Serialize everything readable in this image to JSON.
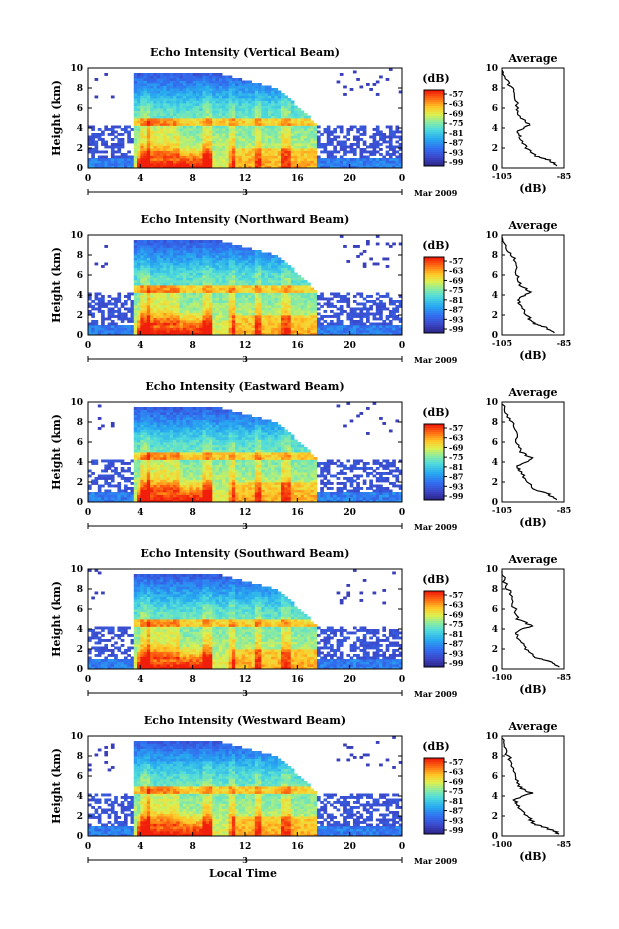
{
  "chart_data": [
    {
      "type": "heatmap",
      "title": "Echo Intensity (Vertical Beam)",
      "ylabel": "Height (km)",
      "yticks": [
        "0",
        "2",
        "4",
        "6",
        "8",
        "10"
      ],
      "ylim": [
        0,
        10
      ],
      "xticks": [
        "0",
        "4",
        "8",
        "12",
        "16",
        "20",
        "0"
      ],
      "day_label": "3",
      "date_label": "Mar 2009",
      "colorbar": {
        "unit": "(dB)",
        "labels": [
          "-57",
          "-63",
          "-69",
          "-75",
          "-81",
          "-87",
          "-93",
          "-99"
        ],
        "range": [
          -99,
          -57
        ]
      },
      "average": {
        "title": "Average",
        "xlabel": "(dB)",
        "xticks": [
          "-105",
          "-85"
        ],
        "xlim": [
          -105,
          -85
        ],
        "ylim": [
          0,
          10
        ],
        "profile": [
          [
            -87,
            0.2
          ],
          [
            -90,
            0.8
          ],
          [
            -94,
            1.2
          ],
          [
            -97,
            2.0
          ],
          [
            -99,
            3.0
          ],
          [
            -100,
            3.6
          ],
          [
            -96,
            4.3
          ],
          [
            -99,
            5.0
          ],
          [
            -100,
            6.0
          ],
          [
            -101,
            7.5
          ],
          [
            -103,
            8.5
          ],
          [
            -105,
            9.8
          ]
        ]
      }
    },
    {
      "type": "heatmap",
      "title": "Echo Intensity (Northward Beam)",
      "ylabel": "Height (km)",
      "yticks": [
        "0",
        "2",
        "4",
        "6",
        "8",
        "10"
      ],
      "ylim": [
        0,
        10
      ],
      "xticks": [
        "0",
        "4",
        "8",
        "12",
        "16",
        "20",
        "0"
      ],
      "day_label": "3",
      "date_label": "Mar 2009",
      "colorbar": {
        "unit": "(dB)",
        "labels": [
          "-57",
          "-63",
          "-69",
          "-75",
          "-81",
          "-87",
          "-93",
          "-99"
        ],
        "range": [
          -99,
          -57
        ]
      },
      "average": {
        "title": "Average",
        "xlabel": "(dB)",
        "xticks": [
          "-105",
          "-85"
        ],
        "xlim": [
          -105,
          -85
        ],
        "ylim": [
          0,
          10
        ],
        "profile": [
          [
            -88,
            0.2
          ],
          [
            -91,
            0.8
          ],
          [
            -95,
            1.2
          ],
          [
            -97,
            2.0
          ],
          [
            -99,
            3.0
          ],
          [
            -100,
            3.6
          ],
          [
            -96,
            4.3
          ],
          [
            -99,
            5.0
          ],
          [
            -100,
            6.0
          ],
          [
            -101,
            7.5
          ],
          [
            -103,
            8.5
          ],
          [
            -105,
            9.8
          ]
        ]
      }
    },
    {
      "type": "heatmap",
      "title": "Echo Intensity (Eastward Beam)",
      "ylabel": "Height (km)",
      "yticks": [
        "0",
        "2",
        "4",
        "6",
        "8",
        "10"
      ],
      "ylim": [
        0,
        10
      ],
      "xticks": [
        "0",
        "4",
        "8",
        "12",
        "16",
        "20",
        "0"
      ],
      "day_label": "3",
      "date_label": "Mar 2009",
      "colorbar": {
        "unit": "(dB)",
        "labels": [
          "-57",
          "-63",
          "-69",
          "-75",
          "-81",
          "-87",
          "-93",
          "-99"
        ],
        "range": [
          -99,
          -57
        ]
      },
      "average": {
        "title": "Average",
        "xlabel": "(dB)",
        "xticks": [
          "-105",
          "-85"
        ],
        "xlim": [
          -105,
          -85
        ],
        "ylim": [
          0,
          10
        ],
        "profile": [
          [
            -87,
            0.2
          ],
          [
            -90,
            0.8
          ],
          [
            -94,
            1.2
          ],
          [
            -97,
            2.0
          ],
          [
            -99,
            3.0
          ],
          [
            -100,
            3.6
          ],
          [
            -95,
            4.3
          ],
          [
            -99,
            5.0
          ],
          [
            -100,
            6.0
          ],
          [
            -101,
            7.5
          ],
          [
            -103,
            8.5
          ],
          [
            -105,
            9.8
          ]
        ]
      }
    },
    {
      "type": "heatmap",
      "title": "Echo Intensity (Southward Beam)",
      "ylabel": "Height (km)",
      "yticks": [
        "0",
        "2",
        "4",
        "6",
        "8",
        "10"
      ],
      "ylim": [
        0,
        10
      ],
      "xticks": [
        "0",
        "4",
        "8",
        "12",
        "16",
        "20",
        "0"
      ],
      "day_label": "3",
      "date_label": "Mar 2009",
      "colorbar": {
        "unit": "(dB)",
        "labels": [
          "-57",
          "-63",
          "-69",
          "-75",
          "-81",
          "-87",
          "-93",
          "-99"
        ],
        "range": [
          -99,
          -57
        ]
      },
      "average": {
        "title": "Average",
        "xlabel": "(dB)",
        "xticks": [
          "-100",
          "-85"
        ],
        "xlim": [
          -100,
          -85
        ],
        "ylim": [
          0,
          10
        ],
        "profile": [
          [
            -86,
            0.2
          ],
          [
            -89,
            0.8
          ],
          [
            -92,
            1.2
          ],
          [
            -94,
            2.0
          ],
          [
            -96,
            3.0
          ],
          [
            -97,
            3.6
          ],
          [
            -93,
            4.3
          ],
          [
            -96,
            5.0
          ],
          [
            -97,
            6.0
          ],
          [
            -98,
            7.5
          ],
          [
            -99,
            8.5
          ],
          [
            -100,
            9.8
          ]
        ]
      }
    },
    {
      "type": "heatmap",
      "title": "Echo Intensity (Westward Beam)",
      "ylabel": "Height (km)",
      "yticks": [
        "0",
        "2",
        "4",
        "6",
        "8",
        "10"
      ],
      "ylim": [
        0,
        10
      ],
      "xticks": [
        "0",
        "4",
        "8",
        "12",
        "16",
        "20",
        "0"
      ],
      "day_label": "3",
      "date_label": "Mar 2009",
      "xlabel": "Local Time",
      "colorbar": {
        "unit": "(dB)",
        "labels": [
          "-57",
          "-63",
          "-69",
          "-75",
          "-81",
          "-87",
          "-93",
          "-99"
        ],
        "range": [
          -99,
          -57
        ]
      },
      "average": {
        "title": "Average",
        "xlabel": "(dB)",
        "xticks": [
          "-100",
          "-85"
        ],
        "xlim": [
          -100,
          -85
        ],
        "ylim": [
          0,
          10
        ],
        "profile": [
          [
            -86,
            0.2
          ],
          [
            -89,
            0.8
          ],
          [
            -92,
            1.2
          ],
          [
            -94,
            2.0
          ],
          [
            -96,
            3.0
          ],
          [
            -97,
            3.6
          ],
          [
            -93,
            4.3
          ],
          [
            -96,
            5.0
          ],
          [
            -97,
            6.0
          ],
          [
            -98,
            7.5
          ],
          [
            -99,
            8.5
          ],
          [
            -100,
            9.8
          ]
        ]
      }
    }
  ]
}
